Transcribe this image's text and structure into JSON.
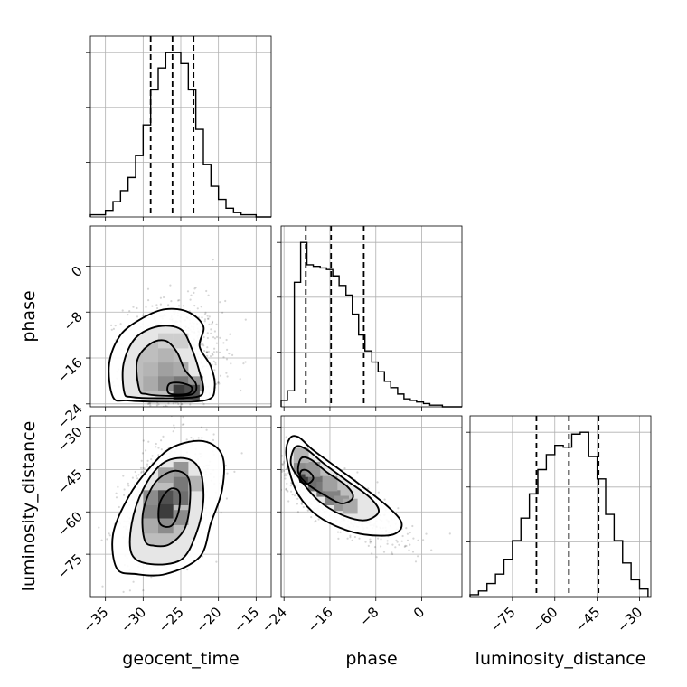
{
  "chart_data": {
    "type": "corner",
    "grid": true,
    "parameters": [
      {
        "name": "geocent_time",
        "xlabel": "geocent_time",
        "range": [
          -37,
          -13
        ],
        "ticks": [
          -35,
          -30,
          -25,
          -20,
          -15
        ],
        "tick_labels": [
          "−35",
          "−30",
          "−25",
          "−20",
          "−15"
        ],
        "quantiles": [
          -29.0,
          -26.1,
          -23.3
        ],
        "histogram": {
          "bin_edges": [
            -37,
            -36,
            -35,
            -34,
            -33,
            -32,
            -31,
            -30,
            -29,
            -28,
            -27,
            -26,
            -25,
            -24,
            -23,
            -22,
            -21,
            -20,
            -19,
            -18,
            -17,
            -16,
            -15,
            -14,
            -13
          ],
          "counts": [
            1,
            1,
            3,
            7,
            12,
            18,
            28,
            42,
            58,
            68,
            75,
            75,
            70,
            58,
            40,
            24,
            14,
            8,
            4,
            2,
            1,
            1,
            0,
            0
          ]
        }
      },
      {
        "name": "phase",
        "xlabel": "phase",
        "ylabel": "phase",
        "range": [
          -24.5,
          7
        ],
        "ticks": [
          -24,
          -16,
          -8,
          0
        ],
        "tick_labels": [
          "−24",
          "−16",
          "−8",
          "0"
        ],
        "quantiles": [
          -20.2,
          -15.8,
          -10.1
        ],
        "histogram": {
          "bin_edges": [
            -24.5,
            -23.4,
            -22.2,
            -21.1,
            -20.0,
            -18.9,
            -17.7,
            -16.6,
            -15.5,
            -14.4,
            -13.2,
            -12.1,
            -11.0,
            -9.9,
            -8.7,
            -7.6,
            -6.5,
            -5.4,
            -4.2,
            -3.1,
            -2.0,
            -0.9,
            0.3,
            1.4,
            2.5,
            3.6,
            4.8,
            5.9,
            7.0
          ],
          "counts": [
            4,
            10,
            78,
            103,
            89,
            88,
            87,
            86,
            82,
            76,
            70,
            58,
            45,
            35,
            28,
            22,
            16,
            12,
            8,
            5,
            4,
            3,
            2,
            1,
            1,
            0,
            0,
            0
          ]
        }
      },
      {
        "name": "luminosity_distance",
        "xlabel": "luminosity_distance",
        "ylabel": "luminosity_distance",
        "range": [
          -90,
          -26
        ],
        "ticks": [
          -75,
          -60,
          -45,
          -30
        ],
        "tick_labels": [
          "−75",
          "−60",
          "−45",
          "−30"
        ],
        "quantiles": [
          -66.5,
          -55.0,
          -44.5
        ],
        "histogram": {
          "bin_edges": [
            -90,
            -87,
            -84,
            -81,
            -78,
            -75,
            -72,
            -69,
            -66,
            -63,
            -60,
            -57,
            -54,
            -51,
            -48,
            -45,
            -42,
            -39,
            -36,
            -33,
            -30,
            -27
          ],
          "counts": [
            1,
            3,
            7,
            12,
            20,
            30,
            42,
            55,
            68,
            76,
            81,
            80,
            87,
            88,
            75,
            63,
            44,
            30,
            18,
            9,
            4
          ]
        }
      }
    ],
    "panels": [
      {
        "type": "histogram",
        "param": "geocent_time"
      },
      {
        "type": "2d_density",
        "x": "geocent_time",
        "y": "phase",
        "center": [
          -26,
          -17
        ],
        "peak": [
          -25,
          -21.5
        ]
      },
      {
        "type": "histogram",
        "param": "phase"
      },
      {
        "type": "2d_density",
        "x": "geocent_time",
        "y": "luminosity_distance",
        "center": [
          -26.5,
          -54
        ],
        "peak": [
          -27,
          -55
        ]
      },
      {
        "type": "2d_density",
        "x": "phase",
        "y": "luminosity_distance",
        "center": [
          -16,
          -55
        ],
        "peak": [
          -20,
          -47
        ]
      },
      {
        "type": "histogram",
        "param": "luminosity_distance"
      }
    ]
  }
}
